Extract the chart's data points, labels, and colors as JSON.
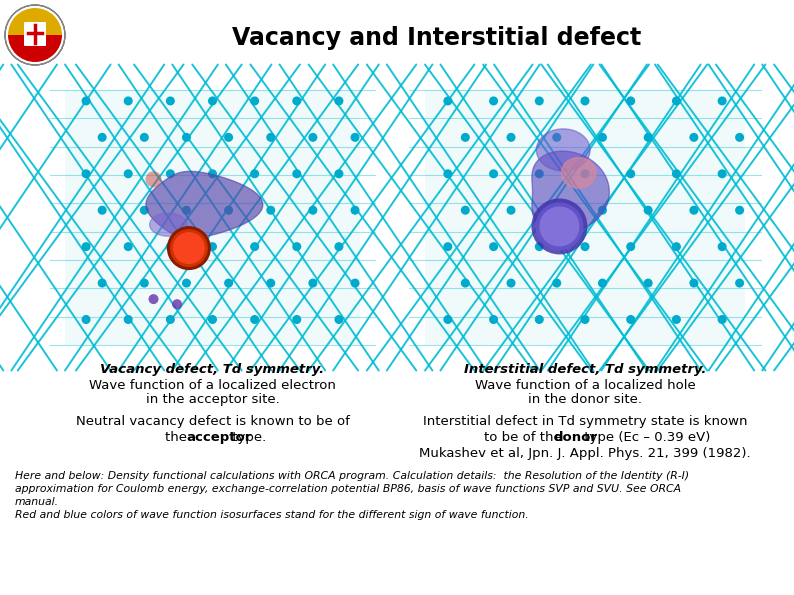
{
  "title": "Vacancy and Interstitial defect",
  "title_fontsize": 17,
  "background_color": "#ffffff",
  "left_caption_bold": "Vacancy defect, Td symmetry.",
  "left_caption_line2": "Wave function of a localized electron",
  "left_caption_line3": "in the acceptor site.",
  "right_caption_bold": "Interstitial defect, Td symmetry.",
  "right_caption_line2": "Wave function of a localized hole",
  "right_caption_line3": "in the donor site.",
  "left_text_line1": "Neutral vacancy defect is known to be of",
  "left_text_line2_pre": "the ",
  "left_text_line2_bold": "acceptor",
  "left_text_line2_post": " type.",
  "right_text_line1": "Interstitial defect in Td symmetry state is known",
  "right_text_line2_pre": "to be of the ",
  "right_text_line2_bold": "donor",
  "right_text_line2_post": " type (Ec – 0.39 eV)",
  "right_text_line3": "Mukashev et al, Jpn. J. Appl. Phys. 21, 399 (1982).",
  "footer_italic_line1": "Here and below: Density functional calculations with ORCA program. Calculation details:  the Resolution of the Identity (R-I)",
  "footer_italic_line2": "approximation for Coulomb energy, exchange-correlation potential BP86, basis of wave functions SVP and SVU. See ORCA",
  "footer_italic_line3": "manual.",
  "footer_italic_line4": "Red and blue colors of wave function isosurfaces stand for the different sign of wave function.",
  "caption_fontsize": 9.5,
  "body_fontsize": 9.5,
  "footer_fontsize": 7.8,
  "teal": "#00bcd4",
  "node_color": "#00aacc",
  "img_bg": "#f0fafa"
}
